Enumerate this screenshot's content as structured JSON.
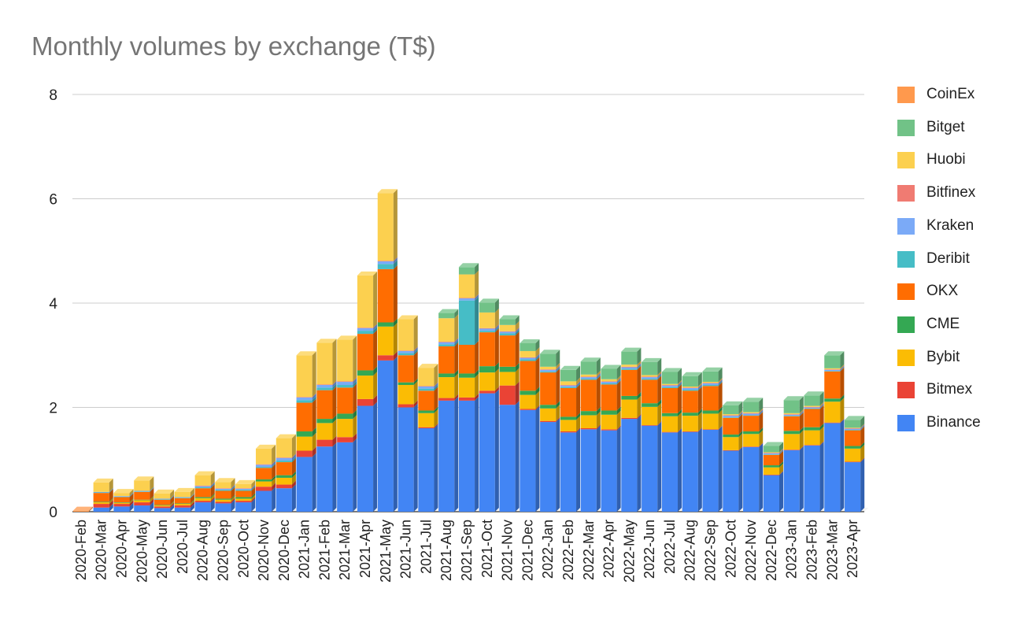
{
  "chart_data": {
    "type": "bar",
    "stacked": true,
    "style": "3d",
    "title": "Monthly volumes by exchange (T$)",
    "xlabel": "",
    "ylabel": "",
    "ylim": [
      0,
      8
    ],
    "yticks": [
      0,
      2,
      4,
      6,
      8
    ],
    "ytick_labels": [
      "0",
      "2",
      "4",
      "6",
      "8"
    ],
    "grid": true,
    "legend_position": "right",
    "categories": [
      "2020-Feb",
      "2020-Mar",
      "2020-Apr",
      "2020-May",
      "2020-Jun",
      "2020-Jul",
      "2020-Aug",
      "2020-Sep",
      "2020-Oct",
      "2020-Nov",
      "2020-Dec",
      "2021-Jan",
      "2021-Feb",
      "2021-Mar",
      "2021-Apr",
      "2021-May",
      "2021-Jun",
      "2021-Jul",
      "2021-Aug",
      "2021-Sep",
      "2021-Oct",
      "2021-Nov",
      "2021-Dec",
      "2022-Jan",
      "2022-Feb",
      "2022-Mar",
      "2022-Apr",
      "2022-May",
      "2022-Jun",
      "2022-Jul",
      "2022-Aug",
      "2022-Sep",
      "2022-Oct",
      "2022-Nov",
      "2022-Dec",
      "2023-Jan",
      "2023-Feb",
      "2023-Mar",
      "2023-Apr"
    ],
    "series": [
      {
        "name": "Binance",
        "color": "#4285f4",
        "values": [
          0.0,
          0.08,
          0.1,
          0.12,
          0.07,
          0.08,
          0.18,
          0.16,
          0.18,
          0.4,
          0.45,
          1.05,
          1.25,
          1.33,
          2.03,
          2.9,
          2.0,
          1.6,
          2.13,
          2.13,
          2.27,
          2.05,
          1.95,
          1.72,
          1.52,
          1.58,
          1.56,
          1.78,
          1.65,
          1.52,
          1.53,
          1.57,
          1.17,
          1.24,
          0.7,
          1.18,
          1.27,
          1.7,
          0.95
        ]
      },
      {
        "name": "Bitmex",
        "color": "#ea4335",
        "values": [
          0.0,
          0.07,
          0.05,
          0.06,
          0.03,
          0.04,
          0.03,
          0.03,
          0.03,
          0.08,
          0.07,
          0.12,
          0.13,
          0.1,
          0.13,
          0.1,
          0.06,
          0.02,
          0.05,
          0.06,
          0.05,
          0.37,
          0.02,
          0.02,
          0.02,
          0.02,
          0.02,
          0.02,
          0.01,
          0.01,
          0.01,
          0.01,
          0.01,
          0.01,
          0.01,
          0.01,
          0.01,
          0.01,
          0.01
        ]
      },
      {
        "name": "Bybit",
        "color": "#fbbc04",
        "values": [
          0.0,
          0.03,
          0.02,
          0.04,
          0.02,
          0.03,
          0.05,
          0.04,
          0.04,
          0.1,
          0.13,
          0.27,
          0.32,
          0.35,
          0.45,
          0.55,
          0.37,
          0.27,
          0.4,
          0.38,
          0.35,
          0.26,
          0.27,
          0.24,
          0.22,
          0.25,
          0.28,
          0.35,
          0.35,
          0.3,
          0.3,
          0.3,
          0.25,
          0.24,
          0.14,
          0.3,
          0.28,
          0.4,
          0.25
        ]
      },
      {
        "name": "CME",
        "color": "#34a853",
        "values": [
          0.0,
          0.01,
          0.01,
          0.01,
          0.01,
          0.01,
          0.02,
          0.02,
          0.03,
          0.04,
          0.05,
          0.1,
          0.08,
          0.1,
          0.1,
          0.08,
          0.05,
          0.05,
          0.07,
          0.08,
          0.12,
          0.1,
          0.08,
          0.07,
          0.06,
          0.08,
          0.08,
          0.07,
          0.07,
          0.06,
          0.06,
          0.06,
          0.05,
          0.05,
          0.04,
          0.06,
          0.06,
          0.06,
          0.05
        ]
      },
      {
        "name": "OKX",
        "color": "#ff6d01",
        "values": [
          0.0,
          0.17,
          0.1,
          0.15,
          0.1,
          0.1,
          0.17,
          0.15,
          0.12,
          0.22,
          0.25,
          0.55,
          0.55,
          0.5,
          0.7,
          1.02,
          0.52,
          0.38,
          0.52,
          0.55,
          0.65,
          0.6,
          0.57,
          0.62,
          0.55,
          0.6,
          0.5,
          0.5,
          0.45,
          0.48,
          0.42,
          0.47,
          0.32,
          0.3,
          0.2,
          0.28,
          0.35,
          0.52,
          0.3
        ]
      },
      {
        "name": "Deribit",
        "color": "#46bdc6",
        "values": [
          0.0,
          0.01,
          0.01,
          0.01,
          0.01,
          0.01,
          0.02,
          0.02,
          0.02,
          0.02,
          0.03,
          0.05,
          0.05,
          0.05,
          0.06,
          0.1,
          0.04,
          0.04,
          0.04,
          0.85,
          0.03,
          0.04,
          0.03,
          0.02,
          0.02,
          0.02,
          0.02,
          0.02,
          0.02,
          0.02,
          0.02,
          0.02,
          0.01,
          0.01,
          0.01,
          0.01,
          0.01,
          0.01,
          0.01
        ]
      },
      {
        "name": "Kraken",
        "color": "#7baaf7",
        "values": [
          0.0,
          0.01,
          0.01,
          0.01,
          0.01,
          0.01,
          0.02,
          0.02,
          0.02,
          0.04,
          0.05,
          0.05,
          0.05,
          0.06,
          0.05,
          0.05,
          0.04,
          0.04,
          0.04,
          0.04,
          0.04,
          0.03,
          0.03,
          0.03,
          0.03,
          0.03,
          0.03,
          0.03,
          0.03,
          0.03,
          0.03,
          0.03,
          0.03,
          0.03,
          0.02,
          0.02,
          0.02,
          0.02,
          0.02
        ]
      },
      {
        "name": "Bitfinex",
        "color": "#f07b72",
        "values": [
          0.0,
          0.0,
          0.0,
          0.0,
          0.0,
          0.0,
          0.01,
          0.01,
          0.01,
          0.01,
          0.01,
          0.01,
          0.01,
          0.01,
          0.01,
          0.01,
          0.01,
          0.01,
          0.01,
          0.01,
          0.01,
          0.01,
          0.01,
          0.01,
          0.01,
          0.01,
          0.01,
          0.01,
          0.01,
          0.01,
          0.01,
          0.01,
          0.01,
          0.01,
          0.01,
          0.01,
          0.01,
          0.01,
          0.01
        ]
      },
      {
        "name": "Huobi",
        "color": "#fcd04f",
        "values": [
          0.0,
          0.18,
          0.06,
          0.2,
          0.1,
          0.1,
          0.2,
          0.12,
          0.08,
          0.3,
          0.37,
          0.8,
          0.8,
          0.8,
          1.0,
          1.3,
          0.6,
          0.35,
          0.45,
          0.45,
          0.3,
          0.12,
          0.12,
          0.05,
          0.07,
          0.04,
          0.04,
          0.04,
          0.03,
          0.02,
          0.02,
          0.02,
          0.02,
          0.02,
          0.01,
          0.02,
          0.02,
          0.02,
          0.01
        ]
      },
      {
        "name": "Bitget",
        "color": "#71c287",
        "values": [
          0.0,
          0.0,
          0.0,
          0.0,
          0.0,
          0.0,
          0.0,
          0.0,
          0.0,
          0.0,
          0.0,
          0.0,
          0.0,
          0.0,
          0.0,
          0.0,
          0.0,
          0.0,
          0.1,
          0.14,
          0.19,
          0.11,
          0.15,
          0.25,
          0.22,
          0.25,
          0.2,
          0.25,
          0.25,
          0.23,
          0.2,
          0.2,
          0.17,
          0.2,
          0.12,
          0.25,
          0.2,
          0.25,
          0.15
        ]
      },
      {
        "name": "CoinEx",
        "color": "#ff994d",
        "values": [
          0.02,
          0.0,
          0.0,
          0.0,
          0.0,
          0.0,
          0.0,
          0.0,
          0.0,
          0.0,
          0.0,
          0.0,
          0.0,
          0.0,
          0.0,
          0.0,
          0.0,
          0.0,
          0.0,
          0.0,
          0.0,
          0.0,
          0.0,
          0.0,
          0.0,
          0.0,
          0.0,
          0.0,
          0.0,
          0.0,
          0.0,
          0.0,
          0.0,
          0.0,
          0.0,
          0.0,
          0.0,
          0.0,
          0.0
        ]
      }
    ]
  }
}
